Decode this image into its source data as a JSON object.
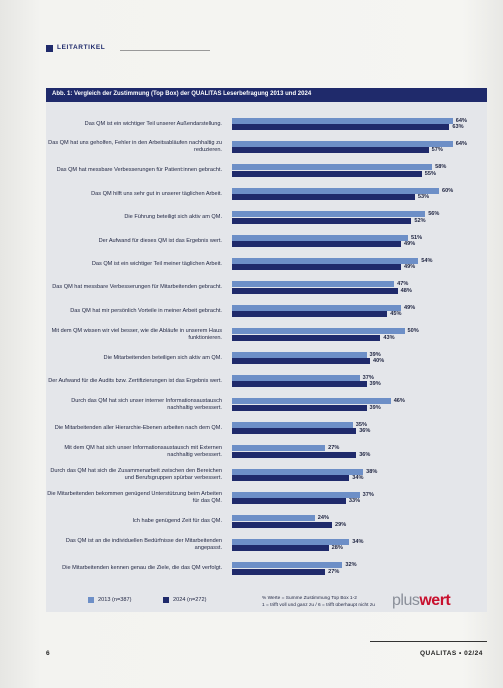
{
  "header": {
    "section": "LEITARTIKEL"
  },
  "chart_data": {
    "type": "bar",
    "orientation": "horizontal",
    "title": "Abb. 1: Vergleich der Zustimmung (Top Box) der QUALITAS Leserbefragung 2013 und 2024",
    "categories": [
      "Das QM ist ein wichtiger Teil unserer Außendarstellung.",
      "Das QM hat uns geholfen, Fehler in den Arbeitsabläufen nachhaltig zu reduzieren.",
      "Das QM hat messbare Verbesserungen für Patient:innen gebracht.",
      "Das QM hilft uns sehr gut in unserer täglichen Arbeit.",
      "Die Führung beteiligt sich aktiv am QM.",
      "Der Aufwand für dieses QM ist das Ergebnis wert.",
      "Das QM ist ein wichtiger Teil meiner täglichen Arbeit.",
      "Das QM hat messbare Verbesserungen für Mitarbeitenden gebracht.",
      "Das QM hat mir persönlich Vorteile in meiner Arbeit gebracht.",
      "Mit dem QM wissen wir viel besser, wie die Abläufe in unserem Haus funktionieren.",
      "Die Mitarbeitenden beteiligen sich aktiv am QM.",
      "Der Aufwand für die Audits bzw. Zertifizierungen ist das Ergebnis wert.",
      "Durch das QM hat sich unser interner Informationsaustausch nachhaltig verbessert.",
      "Die Mitarbeitenden aller Hierarchie-Ebenen arbeiten nach dem QM.",
      "Mit dem QM hat sich unser Informationsaustausch mit Externen nachhaltig verbessert.",
      "Durch das QM hat sich die Zusammenarbeit zwischen den Bereichen und Berufsgruppen spürbar verbessert.",
      "Die Mitarbeitenden bekommen genügend Unterstützung beim Arbeiten für das QM.",
      "Ich habe genügend Zeit für das QM.",
      "Das QM ist an die individuellen Bedürfnisse der Mitarbeitenden angepasst.",
      "Die Mitarbeitenden kennen genau die Ziele, die das QM verfolgt."
    ],
    "series": [
      {
        "name": "2013 (n=387)",
        "color": "#6d8fc7",
        "values": [
          64,
          64,
          58,
          60,
          56,
          51,
          54,
          47,
          49,
          50,
          39,
          37,
          46,
          35,
          27,
          38,
          37,
          24,
          34,
          32
        ],
        "value_labels": [
          "64%",
          "64%",
          "58%",
          "60%",
          "56%",
          "51%",
          "54%",
          "47%",
          "49%",
          "50%",
          "39%",
          "37%",
          "46%",
          "35%",
          "27%",
          "38%",
          "37%",
          "24%",
          "34%",
          "32%"
        ]
      },
      {
        "name": "2024 (n=272)",
        "color": "#1f2a6b",
        "values": [
          63,
          57,
          55,
          53,
          52,
          49,
          49,
          48,
          45,
          43,
          40,
          39,
          39,
          36,
          36,
          34,
          33,
          29,
          28,
          27
        ],
        "value_labels": [
          "63%",
          "57%",
          "55%",
          "53%",
          "52%",
          "49%",
          "49%",
          "48%",
          "45%",
          "43%",
          "40%",
          "39%",
          "39%",
          "36%",
          "36%",
          "34%",
          "33%",
          "29%",
          "28%",
          "27%"
        ]
      }
    ],
    "notes": [
      "% Werte = Summe Zustimmung Top Box 1-2",
      "1 = trifft voll und ganz zu / 6 = trifft überhaupt nicht zu"
    ]
  },
  "logo": {
    "part1": "plus",
    "part2": "wert"
  },
  "footer": {
    "page": "6",
    "journal": "QUALITAS • 02/24"
  }
}
